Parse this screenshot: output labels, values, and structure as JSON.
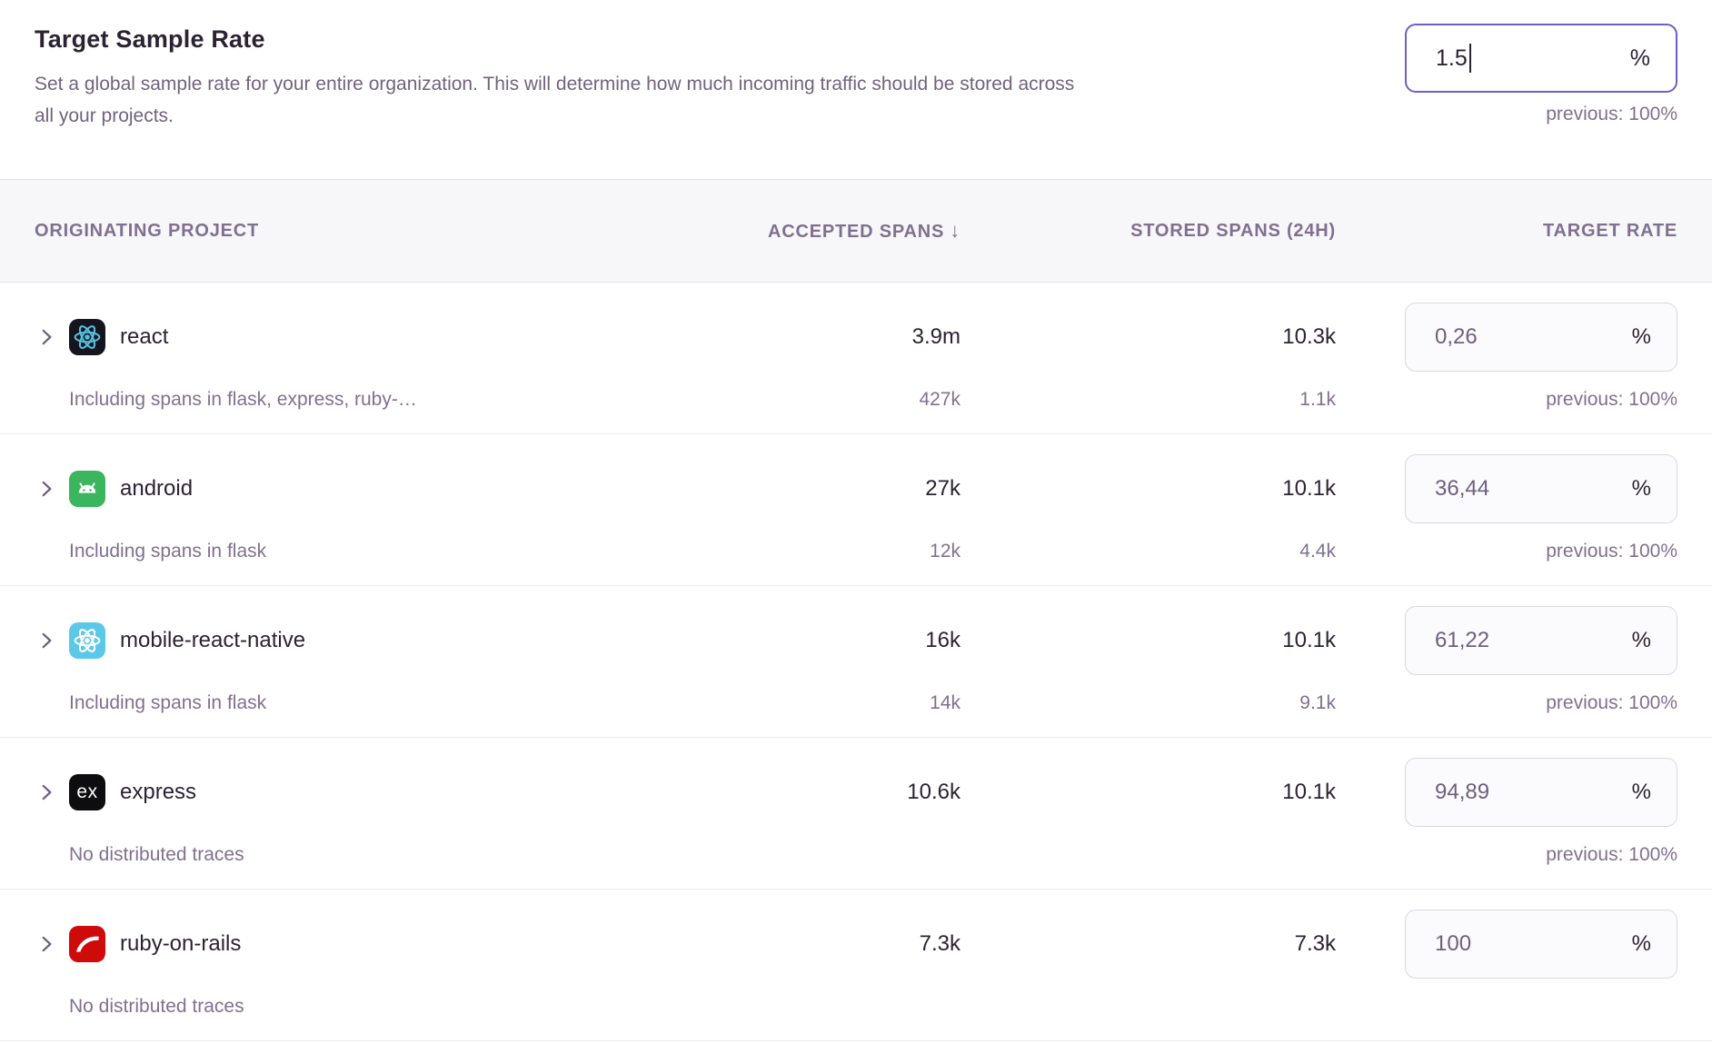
{
  "percent": "%",
  "header": {
    "title": "Target Sample Rate",
    "description": "Set a global sample rate for your entire organization. This will determine how much incoming traffic should be stored across all your projects.",
    "input": {
      "value": "1.5",
      "previous": "previous: 100%"
    }
  },
  "table": {
    "columns": {
      "project": "ORIGINATING PROJECT",
      "accepted": "ACCEPTED SPANS",
      "stored": "STORED SPANS (24H)",
      "rate": "TARGET RATE"
    },
    "sort_icon": "↓",
    "rows": [
      {
        "project": "react",
        "expandable": true,
        "icon": {
          "name": "react-icon",
          "shape": "react-atom",
          "bg": "#16141f",
          "fg": "#53c1de"
        },
        "accepted": "3.9m",
        "stored": "10.3k",
        "rate": {
          "value": "0,26",
          "previous": "previous: 100%"
        },
        "sub": {
          "label": "Including spans in flask, express, ruby-…",
          "accepted": "427k",
          "stored": "1.1k"
        }
      },
      {
        "project": "android",
        "expandable": true,
        "icon": {
          "name": "android-icon",
          "shape": "android",
          "bg": "#3cb55f",
          "fg": "#ffffff"
        },
        "accepted": "27k",
        "stored": "10.1k",
        "rate": {
          "value": "36,44",
          "previous": "previous: 100%"
        },
        "sub": {
          "label": "Including spans in flask",
          "accepted": "12k",
          "stored": "4.4k"
        }
      },
      {
        "project": "mobile-react-native",
        "expandable": true,
        "icon": {
          "name": "react-native-icon",
          "shape": "react-atom",
          "bg": "#5bc8e8",
          "fg": "#ffffff"
        },
        "accepted": "16k",
        "stored": "10.1k",
        "rate": {
          "value": "61,22",
          "previous": "previous: 100%"
        },
        "sub": {
          "label": "Including spans in flask",
          "accepted": "14k",
          "stored": "9.1k"
        }
      },
      {
        "project": "express",
        "expandable": false,
        "icon": {
          "name": "express-icon",
          "shape": "express",
          "bg": "#0d0d10",
          "fg": "#ffffff",
          "glyph": "ex"
        },
        "accepted": "10.6k",
        "stored": "10.1k",
        "rate": {
          "value": "94,89",
          "previous": "previous: 100%"
        },
        "sub": {
          "label": "No distributed traces"
        }
      },
      {
        "project": "ruby-on-rails",
        "expandable": false,
        "icon": {
          "name": "rails-icon",
          "shape": "rails",
          "bg": "#cf0a0a",
          "fg": "#ffffff"
        },
        "accepted": "7.3k",
        "stored": "7.3k",
        "rate": {
          "value": "100"
        },
        "sub": {
          "label": "No distributed traces"
        }
      }
    ]
  },
  "colors": {
    "accent_focus_border": "#6c5fc7",
    "heading_text": "#2b2233",
    "muted_text": "#80708f",
    "header_row_bg": "#f7f6f9",
    "row_divider": "#edeaf1",
    "rate_box_bg": "#fbfafc",
    "rate_box_border": "#dcd7e3"
  }
}
